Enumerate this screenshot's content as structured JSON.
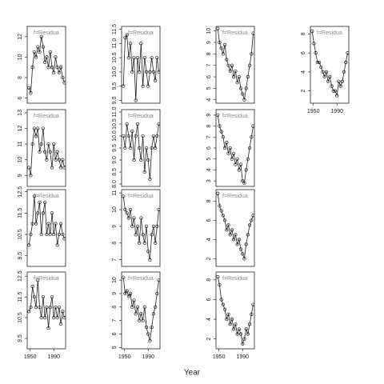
{
  "xlabel": "Year",
  "chart_data": [
    {
      "type": "line",
      "strip": "f=Residua",
      "x": [
        1948,
        1951,
        1954,
        1957,
        1960,
        1963,
        1966,
        1969,
        1972,
        1975,
        1978,
        1981,
        1984,
        1987,
        1990,
        1993,
        1996,
        1999,
        2002,
        2005,
        2008
      ],
      "values": [
        7,
        6.5,
        9,
        10.5,
        10,
        11,
        10.5,
        12,
        11,
        9.5,
        10,
        9,
        10.5,
        9,
        8.5,
        10,
        9,
        8.5,
        9,
        8,
        7.5
      ],
      "xlim": [
        1945,
        2010
      ],
      "ylim": [
        5.5,
        13
      ],
      "yticks": [
        6,
        8,
        10,
        12
      ]
    },
    {
      "type": "line",
      "strip": "f=Residua",
      "x": [
        1948,
        1951,
        1954,
        1957,
        1960,
        1963,
        1966,
        1969,
        1972,
        1975,
        1978,
        1981,
        1984,
        1987,
        1990,
        1993,
        1996,
        1999,
        2002,
        2005,
        2008
      ],
      "values": [
        9.5,
        9,
        11,
        12,
        11.5,
        12,
        10.5,
        11,
        12,
        10.5,
        10,
        11,
        10.5,
        9.5,
        11,
        10,
        10.5,
        10,
        9.5,
        10,
        9.5
      ],
      "xlim": [
        1945,
        2010
      ],
      "ylim": [
        8.3,
        13.2
      ],
      "yticks": [
        9,
        10,
        11,
        12,
        13
      ]
    },
    {
      "type": "line",
      "strip": "f=Residua",
      "x": [
        1948,
        1951,
        1954,
        1957,
        1960,
        1963,
        1966,
        1969,
        1972,
        1975,
        1978,
        1981,
        1984,
        1987,
        1990,
        1993,
        1996,
        1999,
        2002,
        2005,
        2008
      ],
      "values": [
        10,
        10.5,
        11,
        12.3,
        11,
        11.5,
        12,
        10.5,
        11.5,
        12,
        10.5,
        11,
        10.5,
        11.5,
        10.5,
        11,
        10,
        10.5,
        11,
        10.5,
        10.3
      ],
      "xlim": [
        1945,
        2010
      ],
      "ylim": [
        9.0,
        12.6
      ],
      "yticks": [
        9.5,
        10.5,
        11.5,
        12.5
      ]
    },
    {
      "type": "line",
      "strip": "f=Residua",
      "x": [
        1948,
        1951,
        1954,
        1957,
        1960,
        1963,
        1966,
        1969,
        1972,
        1975,
        1978,
        1981,
        1984,
        1987,
        1990,
        1993,
        1996,
        1999,
        2002,
        2005,
        2008
      ],
      "values": [
        10.8,
        11,
        12,
        11.5,
        11,
        12.3,
        11,
        10.5,
        11.5,
        10.5,
        11,
        10,
        11,
        11.5,
        10.5,
        11,
        10.5,
        11,
        10.2,
        10.8,
        10.5
      ],
      "xlim": [
        1945,
        2010
      ],
      "ylim": [
        9.0,
        12.7
      ],
      "yticks": [
        9.5,
        10.5,
        11.5,
        12.5
      ],
      "xticks": [
        1950,
        1990
      ]
    },
    {
      "type": "line",
      "strip": "f=Residua",
      "x": [
        1948,
        1951,
        1954,
        1957,
        1960,
        1963,
        1966,
        1969,
        1972,
        1975,
        1978,
        1981,
        1984,
        1987,
        1990,
        1993,
        1996,
        1999,
        2002,
        2005,
        2008
      ],
      "values": [
        9.5,
        11.2,
        11.3,
        10.5,
        11,
        10,
        10.5,
        9,
        10.5,
        10,
        11,
        9.5,
        10.5,
        10,
        9.5,
        10,
        10.5,
        10,
        9.7,
        10.5,
        10
      ],
      "xlim": [
        1945,
        2010
      ],
      "ylim": [
        8.9,
        11.6
      ],
      "yticks": [
        {
          "value": 9,
          "label": "9.0"
        },
        9.5,
        {
          "value": 10,
          "label": "10.0"
        },
        10.5,
        {
          "value": 11,
          "label": "11.0"
        },
        11.5
      ]
    },
    {
      "type": "line",
      "strip": "f=Residua",
      "x": [
        1948,
        1951,
        1954,
        1957,
        1960,
        1963,
        1966,
        1969,
        1972,
        1975,
        1978,
        1981,
        1984,
        1987,
        1990,
        1993,
        1996,
        1999,
        2002,
        2005,
        2008
      ],
      "values": [
        10,
        9.5,
        10.5,
        10,
        9.5,
        10.2,
        9,
        10,
        10.5,
        9.5,
        9,
        10,
        8.5,
        9.5,
        9,
        8.2,
        9.5,
        10,
        9.5,
        10,
        10.5
      ],
      "xlim": [
        1945,
        2010
      ],
      "ylim": [
        7.9,
        11.1
      ],
      "yticks": [
        {
          "value": 8,
          "label": "8.0"
        },
        8.5,
        {
          "value": 9,
          "label": "9.0"
        },
        9.5,
        {
          "value": 10,
          "label": "10.0"
        },
        10.5,
        {
          "value": 11,
          "label": "11.0"
        }
      ]
    },
    {
      "type": "line",
      "strip": "f=Residua",
      "x": [
        1948,
        1951,
        1954,
        1957,
        1960,
        1963,
        1966,
        1969,
        1972,
        1975,
        1978,
        1981,
        1984,
        1987,
        1990,
        1993,
        1996,
        1999,
        2002,
        2005,
        2008
      ],
      "values": [
        10.8,
        10,
        9.8,
        9.5,
        10,
        9,
        9.5,
        8.5,
        9,
        8,
        9.5,
        8.5,
        8,
        9,
        7.5,
        7,
        8.5,
        9,
        8,
        9,
        10
      ],
      "xlim": [
        1945,
        2010
      ],
      "ylim": [
        6.6,
        11.2
      ],
      "yticks": [
        7,
        8,
        9,
        10,
        11
      ]
    },
    {
      "type": "line",
      "strip": "f=Residua",
      "x": [
        1948,
        1951,
        1954,
        1957,
        1960,
        1963,
        1966,
        1969,
        1972,
        1975,
        1978,
        1981,
        1984,
        1987,
        1990,
        1993,
        1996,
        1999,
        2002,
        2005,
        2008
      ],
      "values": [
        10.2,
        9,
        9.2,
        8.8,
        9,
        8,
        8.5,
        7.5,
        8,
        7,
        7.5,
        7,
        8,
        6.5,
        6,
        5.5,
        6.5,
        7.5,
        8,
        9,
        10
      ],
      "xlim": [
        1945,
        2010
      ],
      "ylim": [
        4.9,
        10.6
      ],
      "yticks": [
        5,
        6,
        7,
        8,
        9,
        10
      ],
      "xticks": [
        1950,
        1990
      ]
    },
    {
      "type": "line",
      "strip": "f=Residua",
      "x": [
        1948,
        1951,
        1954,
        1957,
        1960,
        1963,
        1966,
        1969,
        1972,
        1975,
        1978,
        1981,
        1984,
        1987,
        1990,
        1993,
        1996,
        1999,
        2002,
        2005,
        2008
      ],
      "values": [
        10.2,
        9,
        8.5,
        8,
        8.8,
        7.5,
        7,
        6.5,
        7,
        6,
        6.5,
        5.5,
        6,
        5,
        4.5,
        4,
        5,
        6,
        7,
        8,
        9.8
      ],
      "xlim": [
        1945,
        2010
      ],
      "ylim": [
        3.7,
        10.4
      ],
      "yticks": [
        4,
        5,
        6,
        7,
        8,
        9,
        10
      ]
    },
    {
      "type": "line",
      "strip": "f=Residua",
      "x": [
        1948,
        1951,
        1954,
        1957,
        1960,
        1963,
        1966,
        1969,
        1972,
        1975,
        1978,
        1981,
        1984,
        1987,
        1990,
        1993,
        1996,
        1999,
        2002,
        2005,
        2008
      ],
      "values": [
        9,
        8,
        7.5,
        7,
        6,
        6.5,
        5.5,
        6,
        5,
        5.5,
        4.5,
        5,
        4,
        4.5,
        3,
        2.8,
        4,
        5,
        6,
        7,
        8
      ],
      "xlim": [
        1945,
        2010
      ],
      "ylim": [
        2.5,
        9.5
      ],
      "yticks": [
        3,
        4,
        5,
        6,
        7,
        8,
        9
      ]
    },
    {
      "type": "line",
      "strip": "f=Residua",
      "x": [
        1948,
        1951,
        1954,
        1957,
        1960,
        1963,
        1966,
        1969,
        1972,
        1975,
        1978,
        1981,
        1984,
        1987,
        1990,
        1993,
        1996,
        1999,
        2002,
        2005,
        2008
      ],
      "values": [
        8.8,
        7.5,
        7,
        6.5,
        6,
        5,
        5.5,
        4.5,
        5,
        4,
        4.5,
        3.5,
        4,
        3,
        2.5,
        2,
        3.5,
        4.5,
        5.5,
        6,
        6.5
      ],
      "xlim": [
        1945,
        2010
      ],
      "ylim": [
        1.2,
        9.2
      ],
      "yticks": [
        2,
        4,
        6,
        8
      ]
    },
    {
      "type": "line",
      "strip": "f=Residua",
      "x": [
        1948,
        1951,
        1954,
        1957,
        1960,
        1963,
        1966,
        1969,
        1972,
        1975,
        1978,
        1981,
        1984,
        1987,
        1990,
        1993,
        1996,
        1999,
        2002,
        2005,
        2008
      ],
      "values": [
        8.3,
        7.5,
        6,
        5.5,
        5,
        4,
        4.5,
        3.5,
        4,
        3,
        3.5,
        2.5,
        3,
        2.5,
        1.5,
        2,
        3,
        2.5,
        3.5,
        4.5,
        5.5
      ],
      "xlim": [
        1945,
        2010
      ],
      "ylim": [
        1.0,
        8.8
      ],
      "yticks": [
        2,
        4,
        6,
        8
      ],
      "xticks": [
        1950,
        1990
      ]
    },
    {
      "type": "line",
      "strip": "f=Residua",
      "x": [
        1948,
        1951,
        1954,
        1957,
        1960,
        1963,
        1966,
        1969,
        1972,
        1975,
        1978,
        1981,
        1984,
        1987,
        1990,
        1993,
        1996,
        1999,
        2002,
        2005,
        2008
      ],
      "values": [
        8.3,
        7,
        6,
        5,
        5,
        4.5,
        4,
        3.5,
        4,
        3,
        3.5,
        2.5,
        2,
        2,
        1.5,
        3,
        2.5,
        3,
        4,
        5,
        6
      ],
      "xlim": [
        1945,
        2010
      ],
      "ylim": [
        0.7,
        8.8
      ],
      "yticks": [
        2,
        4,
        6,
        8
      ],
      "xticks": [
        1950,
        1990
      ]
    }
  ]
}
